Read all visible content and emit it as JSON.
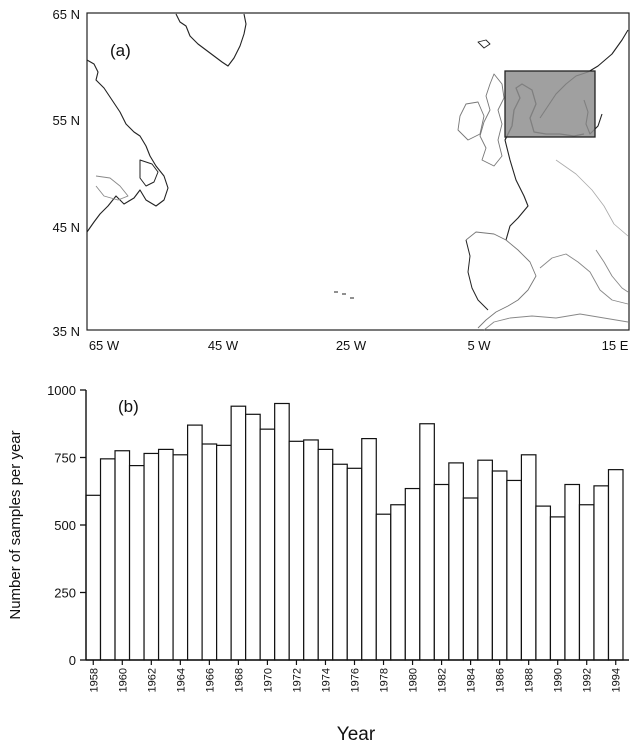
{
  "panel_a": {
    "label": "(a)",
    "y_ticks": [
      "65 N",
      "55 N",
      "45 N",
      "35 N"
    ],
    "x_ticks": [
      "65 W",
      "45 W",
      "25 W",
      "5 W",
      "15 E"
    ],
    "region_fill": "#8f8f8f"
  },
  "chart_data": {
    "type": "bar",
    "panel_label": "(b)",
    "xlabel": "Year",
    "ylabel": "Number of samples per year",
    "ylim": [
      0,
      1000
    ],
    "yticks": [
      0,
      250,
      500,
      750,
      1000
    ],
    "xtick_labels": [
      "1958",
      "1960",
      "1962",
      "1964",
      "1966",
      "1968",
      "1970",
      "1972",
      "1974",
      "1976",
      "1978",
      "1980",
      "1982",
      "1984",
      "1986",
      "1988",
      "1990",
      "1992",
      "1994"
    ],
    "categories": [
      "1958",
      "1959",
      "1960",
      "1961",
      "1962",
      "1963",
      "1964",
      "1965",
      "1966",
      "1967",
      "1968",
      "1969",
      "1970",
      "1971",
      "1972",
      "1973",
      "1974",
      "1975",
      "1976",
      "1977",
      "1978",
      "1979",
      "1980",
      "1981",
      "1982",
      "1983",
      "1984",
      "1985",
      "1986",
      "1987",
      "1988",
      "1989",
      "1990",
      "1991",
      "1992",
      "1993",
      "1994"
    ],
    "values": [
      610,
      745,
      775,
      720,
      765,
      780,
      760,
      870,
      800,
      795,
      940,
      910,
      855,
      950,
      810,
      815,
      780,
      725,
      710,
      820,
      540,
      575,
      635,
      875,
      650,
      730,
      600,
      740,
      700,
      665,
      760,
      570,
      530,
      650,
      575,
      645,
      705
    ],
    "grid": false,
    "bar_color": "#ffffff",
    "edge_color": "#111111"
  }
}
